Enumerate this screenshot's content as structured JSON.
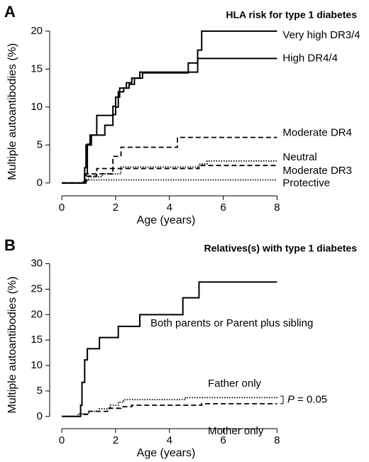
{
  "chart_data": [
    {
      "type": "step",
      "panel_label": "A",
      "title": "HLA risk for type 1 diabetes",
      "xlabel": "Age (years)",
      "ylabel": "Multiple autoantibodies (%)",
      "xlim": [
        -0.45,
        8.2
      ],
      "ylim": [
        -1.7,
        20.5
      ],
      "xticks": [
        0,
        2,
        4,
        6,
        8
      ],
      "yticks": [
        0,
        5,
        10,
        15,
        20
      ],
      "series": [
        {
          "name": "Very high DR3/4",
          "color": "#000000",
          "dash": "solid",
          "x": [
            0,
            0.85,
            0.9,
            1.1,
            1.6,
            1.9,
            2.0,
            2.1,
            2.3,
            2.5,
            2.7,
            3.0,
            4.7,
            5.05,
            5.2,
            8
          ],
          "values": [
            0,
            2,
            5,
            6.3,
            7.6,
            9,
            10,
            12,
            12.5,
            13,
            13.8,
            14.5,
            15.8,
            17.5,
            20,
            20
          ]
        },
        {
          "name": "High DR4/4",
          "color": "#000000",
          "dash": "solid",
          "x": [
            0,
            0.85,
            0.95,
            1.05,
            1.3,
            1.9,
            2.0,
            2.15,
            2.4,
            2.6,
            2.9,
            5.05,
            8
          ],
          "values": [
            0,
            1.2,
            5.1,
            6.3,
            8.9,
            10.1,
            11.3,
            12.5,
            13.2,
            13.8,
            14.6,
            16.4,
            16.4
          ]
        },
        {
          "name": "Moderate DR4",
          "color": "#000000",
          "dash": "dashed",
          "x": [
            0,
            0.9,
            1.9,
            2.2,
            4.3,
            8
          ],
          "values": [
            0,
            1.2,
            3.5,
            4.7,
            6,
            6
          ]
        },
        {
          "name": "Neutral",
          "color": "#000000",
          "dash": "dotted",
          "x": [
            0,
            0.8,
            1.0,
            1.5,
            2.2,
            5.1,
            5.4,
            8
          ],
          "values": [
            0,
            0.3,
            0.8,
            1.2,
            2.1,
            2.5,
            2.9,
            2.9
          ]
        },
        {
          "name": "Moderate DR3",
          "color": "#000000",
          "dash": "dashed",
          "x": [
            0,
            0.9,
            1.3,
            5.1,
            8
          ],
          "values": [
            0,
            0.9,
            1.9,
            2.3,
            2.3
          ]
        },
        {
          "name": "Protective",
          "color": "#000000",
          "dash": "dotted",
          "x": [
            0,
            0.9,
            8
          ],
          "values": [
            0,
            0.4,
            0.4
          ]
        }
      ]
    },
    {
      "type": "step",
      "panel_label": "B",
      "title": "Relatives(s) with type 1 diabetes",
      "xlabel": "Age (years)",
      "ylabel": "Multiple autoantibodies (%)",
      "xlim": [
        -0.45,
        8.2
      ],
      "ylim": [
        -2.4,
        30.5
      ],
      "xticks": [
        0,
        2,
        4,
        6,
        8
      ],
      "yticks": [
        0,
        5,
        10,
        15,
        20,
        25,
        30
      ],
      "annotation": [
        "P",
        "= 0.05"
      ],
      "series": [
        {
          "name": "Both parents or Parent plus sibling",
          "color": "#000000",
          "dash": "solid",
          "x": [
            0,
            0.7,
            0.75,
            0.85,
            0.95,
            1.4,
            2.1,
            2.9,
            4.5,
            5.1,
            8
          ],
          "values": [
            0,
            2.2,
            6.7,
            11.1,
            13.3,
            15.5,
            17.7,
            20,
            23.3,
            26.4,
            26.4
          ]
        },
        {
          "name": "Father only",
          "color": "#000000",
          "dash": "dotted",
          "x": [
            0,
            0.6,
            1.0,
            1.4,
            1.8,
            2.1,
            2.3,
            4.6,
            8
          ],
          "values": [
            0,
            0.5,
            1.0,
            1.5,
            2.2,
            2.8,
            3.3,
            3.7,
            4
          ]
        },
        {
          "name": "Mother only",
          "color": "#000000",
          "dash": "dashed",
          "x": [
            0,
            0.7,
            1.0,
            1.7,
            2.2,
            2.6,
            5.2,
            8
          ],
          "values": [
            0,
            0.4,
            1.0,
            1.6,
            1.9,
            2.2,
            2.5,
            2.5
          ]
        }
      ]
    }
  ]
}
